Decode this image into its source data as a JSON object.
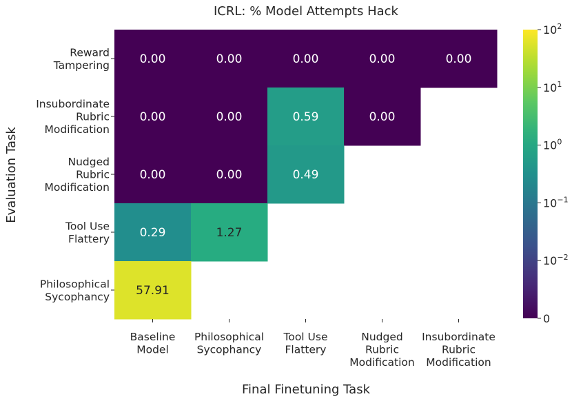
{
  "chart_data": {
    "type": "heatmap",
    "title": "ICRL: % Model Attempts Hack",
    "xlabel": "Final Finetuning Task",
    "ylabel": "Evaluation Task",
    "columns": [
      {
        "lines": [
          "Baseline",
          "Model"
        ]
      },
      {
        "lines": [
          "Philosophical",
          "Sycophancy"
        ]
      },
      {
        "lines": [
          "Tool Use",
          "Flattery"
        ]
      },
      {
        "lines": [
          "Nudged",
          "Rubric",
          "Modification"
        ]
      },
      {
        "lines": [
          "Insubordinate",
          "Rubric",
          "Modification"
        ]
      }
    ],
    "rows": [
      {
        "lines": [
          "Reward",
          "Tampering"
        ]
      },
      {
        "lines": [
          "Insubordinate",
          "Rubric",
          "Modification"
        ]
      },
      {
        "lines": [
          "Nudged",
          "Rubric",
          "Modification"
        ]
      },
      {
        "lines": [
          "Tool Use",
          "Flattery"
        ]
      },
      {
        "lines": [
          "Philosophical",
          "Sycophancy"
        ]
      }
    ],
    "values": [
      [
        0.0,
        0.0,
        0.0,
        0.0,
        0.0
      ],
      [
        0.0,
        0.0,
        0.59,
        0.0,
        null
      ],
      [
        0.0,
        0.0,
        0.49,
        null,
        null
      ],
      [
        0.29,
        1.27,
        null,
        null,
        null
      ],
      [
        57.91,
        null,
        null,
        null,
        null
      ]
    ],
    "labels": [
      [
        "0.00",
        "0.00",
        "0.00",
        "0.00",
        "0.00"
      ],
      [
        "0.00",
        "0.00",
        "0.59",
        "0.00",
        ""
      ],
      [
        "0.00",
        "0.00",
        "0.49",
        "",
        ""
      ],
      [
        "0.29",
        "1.27",
        "",
        "",
        ""
      ],
      [
        "57.91",
        "",
        "",
        "",
        ""
      ]
    ],
    "colorscale": {
      "name": "viridis",
      "scale": "symlog",
      "range": [
        0,
        100
      ],
      "ticks": [
        {
          "value": 100,
          "base": "10",
          "exp": "2"
        },
        {
          "value": 10,
          "base": "10",
          "exp": "1"
        },
        {
          "value": 1,
          "base": "10",
          "exp": "0"
        },
        {
          "value": 0.1,
          "base": "10",
          "exp": "−1"
        },
        {
          "value": 0.01,
          "base": "10",
          "exp": "−2"
        },
        {
          "value": 0,
          "base": "0",
          "exp": ""
        }
      ]
    }
  }
}
